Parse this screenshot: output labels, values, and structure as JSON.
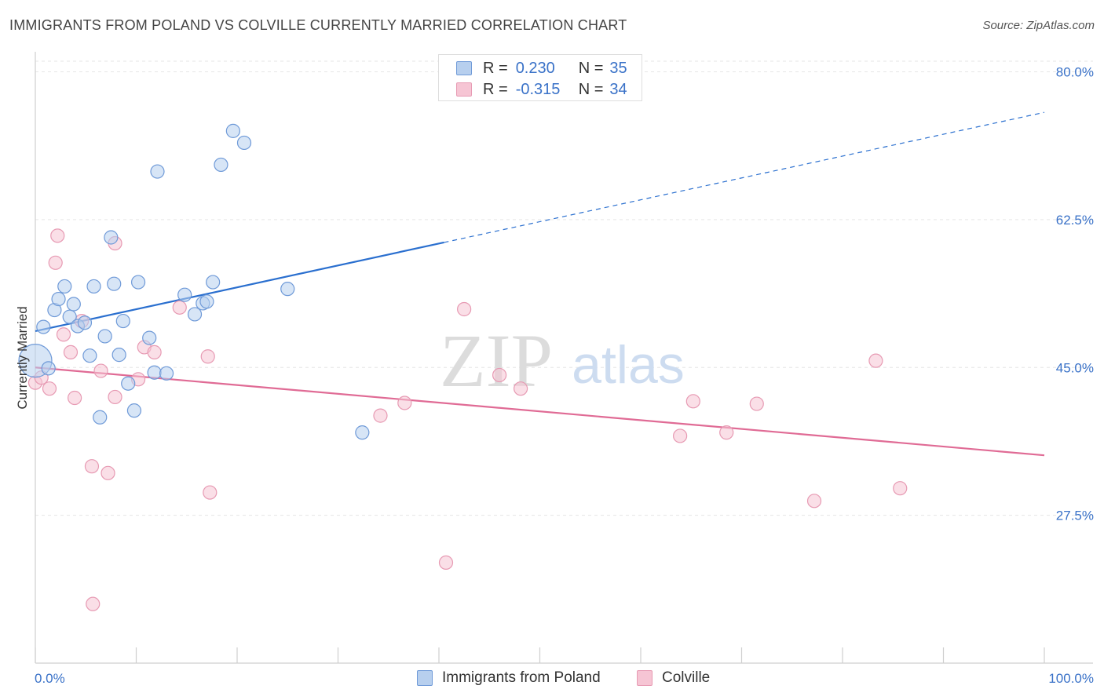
{
  "title": "IMMIGRANTS FROM POLAND VS COLVILLE CURRENTLY MARRIED CORRELATION CHART",
  "source": "Source: ZipAtlas.com",
  "watermark": {
    "zip": "ZIP",
    "atlas": "atlas"
  },
  "legend": {
    "rows": [
      {
        "r_label": "R =",
        "r_value": "0.230",
        "n_label": "N =",
        "n_value": "35"
      },
      {
        "r_label": "R =",
        "r_value": "-0.315",
        "n_label": "N =",
        "n_value": "34"
      }
    ]
  },
  "bottom_legend": {
    "series1": "Immigrants from Poland",
    "series2": "Colville"
  },
  "colors": {
    "blue_fill": "#b7cfee",
    "blue_stroke": "#6f9ad8",
    "blue_line": "#2a6fcf",
    "pink_fill": "#f6c5d4",
    "pink_stroke": "#e79ab3",
    "pink_line": "#e06b95",
    "axis_label": "#3a72c8",
    "grid": "#e6e6e6"
  },
  "chart_data": {
    "type": "scatter",
    "title": "IMMIGRANTS FROM POLAND VS COLVILLE CURRENTLY MARRIED CORRELATION CHART",
    "xlabel": "",
    "ylabel": "Currently Married",
    "xlim": [
      0,
      100
    ],
    "ylim": [
      10,
      82
    ],
    "x_tick_labels": [
      "0.0%",
      "100.0%"
    ],
    "y_ticks": [
      27.5,
      45.0,
      62.5,
      80.0
    ],
    "y_tick_labels": [
      "27.5%",
      "45.0%",
      "62.5%",
      "80.0%"
    ],
    "grid": true,
    "series": [
      {
        "name": "Immigrants from Poland",
        "r": 0.23,
        "n": 35,
        "trend": {
          "x0": 0,
          "y0": 49.3,
          "x1": 40.5,
          "y1": 59.8,
          "dashed_to_x": 100,
          "dashed_to_y": 75.2
        },
        "points": [
          {
            "x": 0.0,
            "y": 45.8,
            "big": true
          },
          {
            "x": 0.8,
            "y": 49.8
          },
          {
            "x": 1.3,
            "y": 44.9
          },
          {
            "x": 1.9,
            "y": 51.8
          },
          {
            "x": 2.3,
            "y": 53.1
          },
          {
            "x": 2.9,
            "y": 54.6
          },
          {
            "x": 3.4,
            "y": 51.0
          },
          {
            "x": 3.8,
            "y": 52.5
          },
          {
            "x": 4.2,
            "y": 49.9
          },
          {
            "x": 4.9,
            "y": 50.3
          },
          {
            "x": 5.4,
            "y": 46.4
          },
          {
            "x": 5.8,
            "y": 54.6
          },
          {
            "x": 6.4,
            "y": 39.1
          },
          {
            "x": 6.9,
            "y": 48.7
          },
          {
            "x": 7.5,
            "y": 60.4
          },
          {
            "x": 7.8,
            "y": 54.9
          },
          {
            "x": 8.3,
            "y": 46.5
          },
          {
            "x": 8.7,
            "y": 50.5
          },
          {
            "x": 9.2,
            "y": 43.1
          },
          {
            "x": 9.8,
            "y": 39.9
          },
          {
            "x": 10.2,
            "y": 55.1
          },
          {
            "x": 11.3,
            "y": 48.5
          },
          {
            "x": 11.8,
            "y": 44.4
          },
          {
            "x": 12.1,
            "y": 68.2
          },
          {
            "x": 13.0,
            "y": 44.3
          },
          {
            "x": 14.8,
            "y": 53.6
          },
          {
            "x": 15.8,
            "y": 51.3
          },
          {
            "x": 16.6,
            "y": 52.6
          },
          {
            "x": 17.0,
            "y": 52.8
          },
          {
            "x": 17.6,
            "y": 55.1
          },
          {
            "x": 18.4,
            "y": 69.0
          },
          {
            "x": 19.6,
            "y": 73.0
          },
          {
            "x": 20.7,
            "y": 71.6
          },
          {
            "x": 25.0,
            "y": 54.3
          },
          {
            "x": 32.4,
            "y": 37.3
          }
        ]
      },
      {
        "name": "Colville",
        "r": -0.315,
        "n": 34,
        "trend": {
          "x0": 0,
          "y0": 45.0,
          "x1": 100,
          "y1": 34.6
        },
        "points": [
          {
            "x": 0.0,
            "y": 43.2
          },
          {
            "x": 0.6,
            "y": 43.8
          },
          {
            "x": 1.4,
            "y": 42.5
          },
          {
            "x": 2.0,
            "y": 57.4
          },
          {
            "x": 2.2,
            "y": 60.6
          },
          {
            "x": 2.8,
            "y": 48.9
          },
          {
            "x": 3.5,
            "y": 46.8
          },
          {
            "x": 3.9,
            "y": 41.4
          },
          {
            "x": 4.6,
            "y": 50.5
          },
          {
            "x": 5.6,
            "y": 33.3
          },
          {
            "x": 5.7,
            "y": 17.0
          },
          {
            "x": 6.5,
            "y": 44.6
          },
          {
            "x": 7.2,
            "y": 32.5
          },
          {
            "x": 7.9,
            "y": 59.7
          },
          {
            "x": 7.9,
            "y": 41.5
          },
          {
            "x": 10.2,
            "y": 43.6
          },
          {
            "x": 10.8,
            "y": 47.4
          },
          {
            "x": 11.8,
            "y": 46.8
          },
          {
            "x": 14.3,
            "y": 52.1
          },
          {
            "x": 17.1,
            "y": 46.3
          },
          {
            "x": 17.3,
            "y": 30.2
          },
          {
            "x": 34.2,
            "y": 39.3
          },
          {
            "x": 36.6,
            "y": 40.8
          },
          {
            "x": 40.7,
            "y": 21.9
          },
          {
            "x": 42.5,
            "y": 51.9
          },
          {
            "x": 46.0,
            "y": 44.1
          },
          {
            "x": 48.1,
            "y": 42.5
          },
          {
            "x": 63.9,
            "y": 36.9
          },
          {
            "x": 65.2,
            "y": 41.0
          },
          {
            "x": 68.5,
            "y": 37.3
          },
          {
            "x": 71.5,
            "y": 40.7
          },
          {
            "x": 77.2,
            "y": 29.2
          },
          {
            "x": 83.3,
            "y": 45.8
          },
          {
            "x": 85.7,
            "y": 30.7
          }
        ]
      }
    ]
  }
}
